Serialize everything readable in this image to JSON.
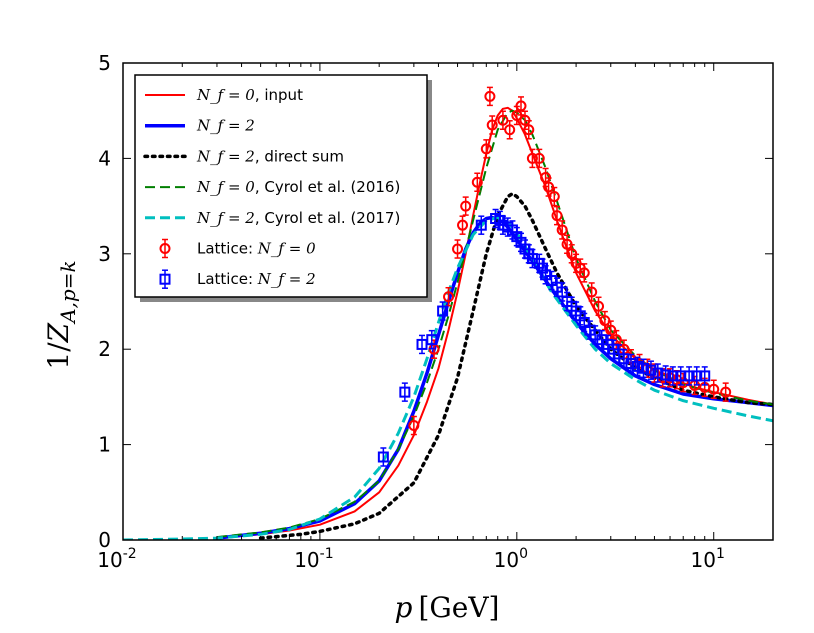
{
  "chart_data": {
    "type": "line",
    "title": "",
    "xlabel": "p [GeV]",
    "ylabel": "1/Z_{A,p=k}",
    "xscale": "log",
    "xlim": [
      0.01,
      20
    ],
    "ylim": [
      0,
      5
    ],
    "x_ticks": [
      {
        "value": 0.01,
        "base": "10",
        "exp": "-2"
      },
      {
        "value": 0.1,
        "base": "10",
        "exp": "-1"
      },
      {
        "value": 1,
        "base": "10",
        "exp": "0"
      },
      {
        "value": 10,
        "base": "10",
        "exp": "1"
      }
    ],
    "y_ticks": [
      {
        "value": 0,
        "label": "0"
      },
      {
        "value": 1,
        "label": "1"
      },
      {
        "value": 2,
        "label": "2"
      },
      {
        "value": 3,
        "label": "3"
      },
      {
        "value": 4,
        "label": "4"
      },
      {
        "value": 5,
        "label": "5"
      }
    ],
    "legend_position": "top-left",
    "series": [
      {
        "name": "N_f = 0, input",
        "legend_math": "N_f = 0",
        "legend_suffix": ", input",
        "kind": "line",
        "color": "#ff0000",
        "dash": "solid",
        "width": 2,
        "x": [
          0.03,
          0.05,
          0.07,
          0.1,
          0.15,
          0.2,
          0.25,
          0.3,
          0.35,
          0.4,
          0.45,
          0.5,
          0.55,
          0.6,
          0.65,
          0.7,
          0.75,
          0.8,
          0.85,
          0.9,
          0.95,
          1.0,
          1.1,
          1.2,
          1.4,
          1.6,
          1.8,
          2.0,
          2.5,
          3.0,
          4.0,
          5.0,
          6.0,
          8.0,
          10,
          15,
          20
        ],
        "y": [
          0.02,
          0.06,
          0.1,
          0.16,
          0.3,
          0.5,
          0.78,
          1.1,
          1.45,
          1.8,
          2.2,
          2.6,
          3.0,
          3.4,
          3.75,
          4.05,
          4.3,
          4.45,
          4.52,
          4.53,
          4.5,
          4.42,
          4.25,
          4.05,
          3.7,
          3.35,
          3.05,
          2.8,
          2.4,
          2.15,
          1.9,
          1.78,
          1.7,
          1.6,
          1.55,
          1.47,
          1.42
        ]
      },
      {
        "name": "N_f = 2",
        "legend_math": "N_f = 2",
        "legend_suffix": "",
        "kind": "line",
        "color": "#0000ff",
        "dash": "solid",
        "width": 3.5,
        "x": [
          0.03,
          0.05,
          0.07,
          0.1,
          0.15,
          0.2,
          0.25,
          0.3,
          0.35,
          0.4,
          0.45,
          0.5,
          0.55,
          0.6,
          0.65,
          0.7,
          0.75,
          0.8,
          0.85,
          0.9,
          1.0,
          1.2,
          1.4,
          1.6,
          2.0,
          2.5,
          3.0,
          4.0,
          5.0,
          7.0,
          10,
          15,
          20
        ],
        "y": [
          0.02,
          0.07,
          0.12,
          0.2,
          0.38,
          0.62,
          0.95,
          1.35,
          1.75,
          2.15,
          2.5,
          2.8,
          3.05,
          3.22,
          3.32,
          3.37,
          3.38,
          3.36,
          3.33,
          3.28,
          3.15,
          2.92,
          2.72,
          2.55,
          2.28,
          2.05,
          1.9,
          1.72,
          1.63,
          1.53,
          1.48,
          1.44,
          1.41
        ]
      },
      {
        "name": "N_f = 2, direct sum",
        "legend_math": "N_f = 2",
        "legend_suffix": ", direct sum",
        "kind": "line",
        "color": "#000000",
        "dash": "dotted",
        "width": 3.5,
        "x": [
          0.05,
          0.08,
          0.1,
          0.15,
          0.2,
          0.3,
          0.4,
          0.5,
          0.6,
          0.7,
          0.8,
          0.9,
          0.95,
          1.0,
          1.1,
          1.2,
          1.4,
          1.6,
          2.0,
          2.5,
          3.0,
          4.0,
          5.0,
          7.0,
          10,
          15,
          20
        ],
        "y": [
          0.02,
          0.06,
          0.09,
          0.17,
          0.28,
          0.6,
          1.1,
          1.7,
          2.4,
          3.0,
          3.4,
          3.6,
          3.63,
          3.6,
          3.5,
          3.35,
          3.05,
          2.8,
          2.45,
          2.2,
          2.0,
          1.8,
          1.7,
          1.57,
          1.5,
          1.44,
          1.42
        ]
      },
      {
        "name": "N_f = 0, Cyrol et al. (2016)",
        "legend_math": "N_f = 0",
        "legend_suffix": ", Cyrol et al. (2016)",
        "kind": "line",
        "color": "#007f00",
        "dash": "dashed",
        "width": 2,
        "x": [
          0.03,
          0.05,
          0.07,
          0.1,
          0.15,
          0.2,
          0.25,
          0.3,
          0.35,
          0.4,
          0.45,
          0.5,
          0.6,
          0.7,
          0.8,
          0.9,
          0.95,
          1.0,
          1.1,
          1.2,
          1.4,
          1.6,
          2.0,
          2.5,
          3.0,
          4.0,
          5.0,
          7.0,
          10,
          15,
          20
        ],
        "y": [
          0.03,
          0.08,
          0.13,
          0.22,
          0.4,
          0.62,
          0.95,
          1.3,
          1.65,
          2.0,
          2.35,
          2.7,
          3.35,
          3.9,
          4.3,
          4.48,
          4.5,
          4.48,
          4.4,
          4.25,
          3.9,
          3.55,
          2.95,
          2.5,
          2.2,
          1.93,
          1.78,
          1.63,
          1.54,
          1.46,
          1.42
        ]
      },
      {
        "name": "N_f = 2, Cyrol et al. (2017)",
        "legend_math": "N_f = 2",
        "legend_suffix": ", Cyrol et al. (2017)",
        "kind": "line",
        "color": "#00bfbf",
        "dash": "dashed",
        "width": 3,
        "x": [
          0.01,
          0.02,
          0.03,
          0.05,
          0.07,
          0.1,
          0.15,
          0.2,
          0.25,
          0.3,
          0.35,
          0.4,
          0.45,
          0.5,
          0.6,
          0.7,
          0.8,
          0.9,
          1.0,
          1.2,
          1.5,
          2.0,
          2.5,
          3.0,
          4.0,
          5.0,
          7.0,
          10,
          15,
          20
        ],
        "y": [
          0.0,
          0.01,
          0.02,
          0.06,
          0.11,
          0.22,
          0.45,
          0.75,
          1.12,
          1.5,
          1.9,
          2.28,
          2.6,
          2.85,
          3.2,
          3.35,
          3.38,
          3.33,
          3.22,
          2.95,
          2.6,
          2.25,
          2.0,
          1.85,
          1.68,
          1.57,
          1.46,
          1.38,
          1.3,
          1.25
        ]
      },
      {
        "name": "Lattice: N_f = 0",
        "legend_math": "N_f = 0",
        "legend_prefix": "Lattice: ",
        "kind": "markers",
        "marker": "circle",
        "color": "#ff0000",
        "x": [
          0.3,
          0.38,
          0.45,
          0.5,
          0.53,
          0.55,
          0.63,
          0.7,
          0.73,
          0.75,
          0.85,
          0.92,
          1.0,
          1.05,
          1.1,
          1.15,
          1.2,
          1.3,
          1.4,
          1.45,
          1.55,
          1.6,
          1.7,
          1.8,
          1.9,
          2.0,
          2.1,
          2.2,
          2.4,
          2.6,
          2.8,
          3.0,
          3.2,
          3.5,
          3.8,
          4.2,
          4.6,
          5.0,
          5.5,
          6.0,
          6.5,
          7.0,
          8.0,
          9.0,
          10,
          11.5
        ],
        "y": [
          1.2,
          2.0,
          2.55,
          3.05,
          3.3,
          3.5,
          3.75,
          4.1,
          4.65,
          4.35,
          4.4,
          4.3,
          4.45,
          4.55,
          4.4,
          4.3,
          4.0,
          4.0,
          3.8,
          3.7,
          3.6,
          3.4,
          3.25,
          3.1,
          3.0,
          2.9,
          2.85,
          2.8,
          2.6,
          2.45,
          2.3,
          2.2,
          2.1,
          2.0,
          1.9,
          1.85,
          1.8,
          1.75,
          1.7,
          1.7,
          1.68,
          1.65,
          1.62,
          1.6,
          1.58,
          1.55
        ]
      },
      {
        "name": "Lattice: N_f = 2",
        "legend_math": "N_f = 2",
        "legend_prefix": "Lattice: ",
        "kind": "markers",
        "marker": "square",
        "color": "#0000ff",
        "x": [
          0.21,
          0.27,
          0.33,
          0.37,
          0.42,
          0.66,
          0.78,
          0.82,
          0.85,
          0.9,
          0.95,
          1.0,
          1.05,
          1.1,
          1.15,
          1.2,
          1.3,
          1.35,
          1.4,
          1.5,
          1.6,
          1.7,
          1.8,
          1.9,
          2.0,
          2.1,
          2.2,
          2.35,
          2.5,
          2.7,
          2.9,
          3.1,
          3.3,
          3.5,
          3.8,
          4.1,
          4.4,
          4.8,
          5.2,
          5.7,
          6.2,
          6.8,
          7.5,
          8.2,
          9.0
        ],
        "y": [
          0.87,
          1.55,
          2.05,
          2.1,
          2.4,
          3.3,
          3.37,
          3.35,
          3.3,
          3.28,
          3.25,
          3.18,
          3.12,
          3.05,
          3.0,
          2.95,
          2.9,
          2.85,
          2.78,
          2.72,
          2.65,
          2.6,
          2.5,
          2.45,
          2.4,
          2.35,
          2.28,
          2.2,
          2.15,
          2.1,
          2.05,
          2.0,
          1.95,
          1.9,
          1.85,
          1.82,
          1.8,
          1.78,
          1.75,
          1.73,
          1.72,
          1.72,
          1.72,
          1.72,
          1.72
        ]
      }
    ]
  }
}
